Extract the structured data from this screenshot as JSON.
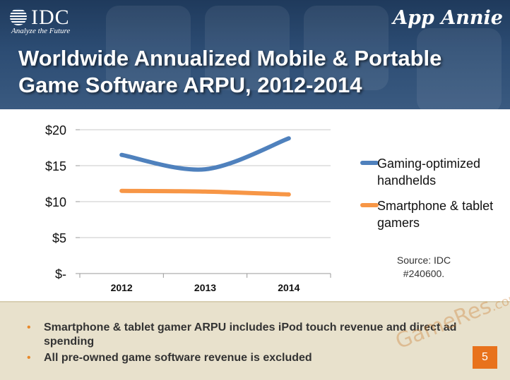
{
  "header": {
    "logo_text": "IDC",
    "logo_tagline": "Analyze the Future",
    "partner_logo": "App Annie",
    "title_line1": "Worldwide Annualized Mobile & Portable",
    "title_line2": "Game Software ARPU, 2012-2014",
    "colors": {
      "header_bg": "#2c4c73",
      "title_text": "#ffffff"
    }
  },
  "chart_data": {
    "type": "line",
    "title": "Worldwide Annualized Mobile & Portable Game Software ARPU, 2012-2014",
    "categories": [
      "2012",
      "2013",
      "2014"
    ],
    "series": [
      {
        "name": "Gaming-optimized handhelds",
        "values": [
          16.5,
          14.5,
          18.8
        ],
        "color": "#4f81bd"
      },
      {
        "name": "Smartphone & tablet gamers",
        "values": [
          11.5,
          11.4,
          11.0
        ],
        "color": "#f79646"
      }
    ],
    "yticks": [
      "$-",
      "$5",
      "$10",
      "$15",
      "$20"
    ],
    "ylim": [
      0,
      20
    ],
    "grid": true,
    "legend": "right",
    "xlabel": "",
    "ylabel": ""
  },
  "legend": {
    "items": [
      {
        "label": "Gaming-optimized handhelds",
        "color": "#4f81bd"
      },
      {
        "label": "Smartphone & tablet gamers",
        "color": "#f79646"
      }
    ]
  },
  "source": {
    "line1": "Source: IDC",
    "line2": "#240600."
  },
  "footer": {
    "bullets": [
      "Smartphone & tablet gamer ARPU includes iPod touch revenue and direct ad spending",
      "All pre-owned game software revenue is excluded"
    ],
    "bullet_char": "•",
    "watermark": "GameRes",
    "watermark_domain": ".com",
    "page_number": "5",
    "colors": {
      "footer_bg": "#e8e1cc",
      "page_badge": "#e8721c"
    }
  }
}
